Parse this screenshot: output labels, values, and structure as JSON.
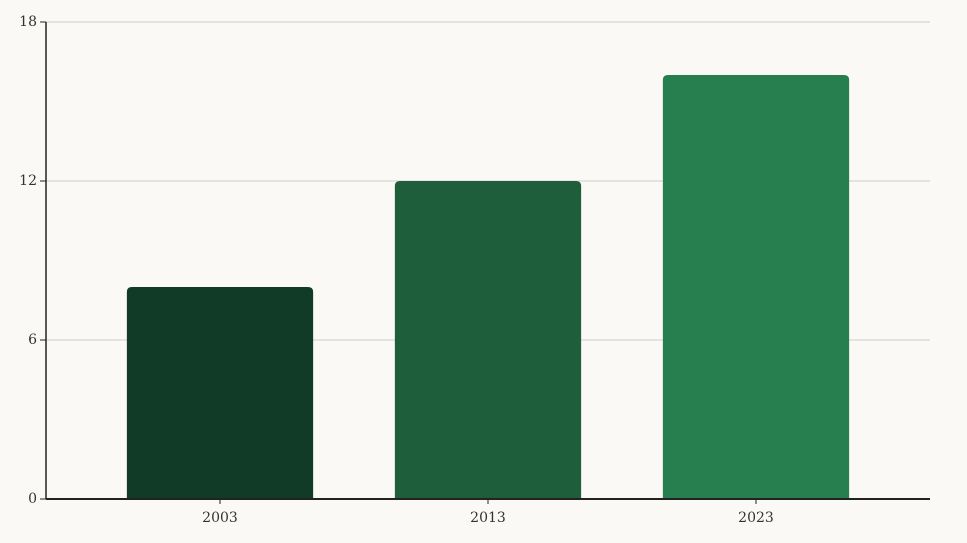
{
  "chart_data": {
    "type": "bar",
    "categories": [
      "2003",
      "2013",
      "2023"
    ],
    "values": [
      8,
      12,
      16
    ],
    "colors": [
      "#123b27",
      "#1e5e3a",
      "#277f4f"
    ],
    "ylim": [
      0,
      18
    ],
    "yticks": [
      0,
      6,
      12,
      18
    ],
    "grid": true
  }
}
